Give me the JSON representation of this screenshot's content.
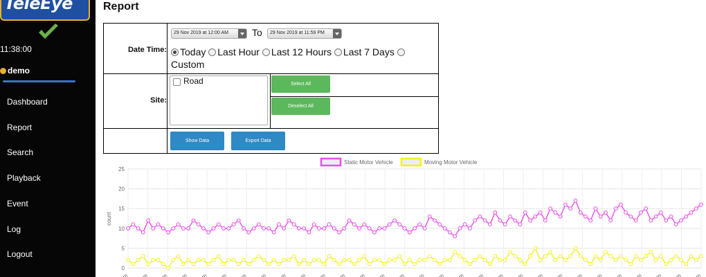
{
  "sidebar": {
    "logo_text": "TeleEye",
    "clock": "11:38:00",
    "user": "demo",
    "nav": [
      "Dashboard",
      "Report",
      "Search",
      "Playback",
      "Event",
      "Log",
      "Logout"
    ]
  },
  "page": {
    "title": "Report"
  },
  "form": {
    "datetime_label": "Date Time:",
    "start": "29 Nov 2019 at 12:00 AM",
    "to": "To",
    "end": "29 Nov 2019 at 11:59 PM",
    "ranges": [
      "Today",
      "Last Hour",
      "Last 12 Hours",
      "Last 7 Days",
      "Custom"
    ],
    "selected_range": "Today",
    "site_label": "Site:",
    "sites": [
      "Road"
    ],
    "select_all": "Select All",
    "deselect_all": "Deselect All",
    "show_data": "Show Data",
    "export_data": "Export Data"
  },
  "colors": {
    "static": "#e84de8",
    "moving": "#f2f21e",
    "green": "#5cb85c",
    "blue": "#2e89c4"
  },
  "chart_data": {
    "type": "line",
    "title": "",
    "xlabel": "",
    "ylabel": "count",
    "ylim": [
      0,
      25
    ],
    "yticks": [
      0,
      5,
      10,
      15,
      20,
      25
    ],
    "x_tick_label_suffix": "am",
    "x_tick_count": 30,
    "grid": true,
    "legend_position": "top",
    "series": [
      {
        "name": "Static Motor Vehicle",
        "color": "#e84de8",
        "values": [
          10,
          11,
          10,
          9,
          12,
          10,
          11,
          10,
          9,
          10,
          11,
          10,
          10,
          12,
          11,
          10,
          9,
          10,
          11,
          10,
          10,
          11,
          12,
          10,
          9,
          10,
          11,
          10,
          10,
          9,
          11,
          10,
          12,
          11,
          10,
          10,
          9,
          11,
          10,
          10,
          11,
          10,
          9,
          10,
          12,
          11,
          10,
          11,
          10,
          9,
          10,
          10,
          11,
          12,
          11,
          10,
          9,
          10,
          11,
          10,
          13,
          12,
          11,
          10,
          9,
          8,
          10,
          11,
          10,
          12,
          13,
          12,
          11,
          14,
          12,
          11,
          13,
          12,
          11,
          14,
          12,
          13,
          14,
          12,
          15,
          14,
          13,
          16,
          15,
          17,
          14,
          13,
          12,
          15,
          13,
          14,
          12,
          15,
          16,
          14,
          13,
          12,
          14,
          15,
          12,
          13,
          14,
          12,
          13,
          11,
          12,
          13,
          14,
          15,
          16
        ]
      },
      {
        "name": "Moving Motor Vehicle",
        "color": "#f2f21e",
        "values": [
          2,
          1,
          2,
          3,
          1,
          2,
          2,
          1,
          0,
          2,
          3,
          1,
          2,
          1,
          2,
          2,
          1,
          2,
          3,
          1,
          2,
          2,
          1,
          2,
          1,
          2,
          3,
          2,
          1,
          2,
          1,
          2,
          2,
          3,
          1,
          2,
          1,
          2,
          2,
          1,
          3,
          2,
          1,
          2,
          2,
          1,
          2,
          3,
          1,
          2,
          2,
          1,
          2,
          2,
          3,
          1,
          2,
          1,
          2,
          2,
          3,
          2,
          1,
          2,
          2,
          4,
          3,
          2,
          1,
          2,
          3,
          2,
          1,
          3,
          2,
          2,
          4,
          3,
          2,
          1,
          3,
          5,
          2,
          3,
          4,
          2,
          3,
          2,
          3,
          5,
          3,
          2,
          1,
          3,
          2,
          4,
          3,
          2,
          3,
          2,
          1,
          3,
          2,
          3,
          4,
          2,
          3,
          1,
          2,
          3,
          2,
          1,
          3,
          2,
          3
        ]
      }
    ]
  }
}
